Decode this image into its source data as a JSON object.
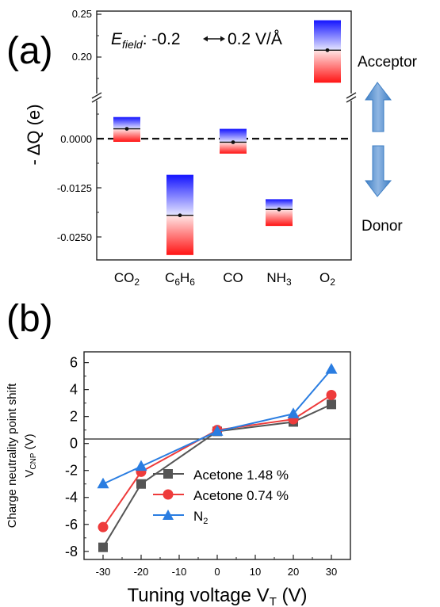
{
  "panel_a": {
    "label": "(a)",
    "field_prefix": "E",
    "field_sub": "field",
    "field_range": ": -0.2",
    "field_unit": "0.2 V/Å",
    "ylabel": "- ΔQ (e)",
    "acceptor_label": "Acceptor",
    "donor_label": "Donor",
    "upper_ticks": [
      "0.25",
      "0.20"
    ],
    "lower_ticks": [
      "0.0000",
      "-0.0125",
      "-0.0250"
    ],
    "molecules": [
      {
        "main": "CO",
        "sub": "2",
        "tail": ""
      },
      {
        "main": "C",
        "sub": "6",
        "tail": "H",
        "sub2": "6"
      },
      {
        "main": "CO",
        "sub": "",
        "tail": ""
      },
      {
        "main": "NH",
        "sub": "3",
        "tail": ""
      },
      {
        "main": "O",
        "sub": "2",
        "tail": ""
      }
    ]
  },
  "panel_b": {
    "label": "(b)",
    "ylabel_line1": "Charge neutrality point shift",
    "ylabel_line2_main": "V",
    "ylabel_line2_sub": "CNP",
    "ylabel_line2_tail": " (V)",
    "xlabel_main": "Tuning voltage V",
    "xlabel_sub": "T",
    "xlabel_tail": "  (V)",
    "x_ticks": [
      "-30",
      "-20",
      "-10",
      "0",
      "10",
      "20",
      "30"
    ],
    "y_ticks": [
      "6",
      "4",
      "2",
      "0",
      "-2",
      "-4",
      "-6",
      "-8"
    ],
    "legend": [
      {
        "label": "Acetone  1.48 %"
      },
      {
        "label": "Acetone  0.74 %"
      },
      {
        "label_main": "N",
        "label_sub": "2"
      }
    ]
  },
  "chart_data": [
    {
      "type": "bar",
      "panel": "(a)",
      "ylabel": "- ΔQ (e)",
      "categories": [
        "CO2",
        "C6H6",
        "CO",
        "NH3",
        "O2"
      ],
      "broken_axis": {
        "upper_range": [
          0.17,
          0.25
        ],
        "lower_range": [
          -0.03,
          0.006
        ]
      },
      "center": [
        0.0025,
        -0.0195,
        -0.0009,
        -0.018,
        0.208
      ],
      "max": [
        0.0055,
        -0.0092,
        0.0025,
        -0.0154,
        0.243
      ],
      "min": [
        -0.0008,
        -0.0296,
        -0.0038,
        -0.0222,
        0.17
      ],
      "colors": {
        "positive_field": "#1a1aff",
        "negative_field": "#ff1a1a"
      },
      "annotations": [
        "Acceptor",
        "Donor"
      ]
    },
    {
      "type": "line",
      "panel": "(b)",
      "xlabel": "Tuning voltage VT  (V)",
      "ylabel": "Charge neutrality point shift VCNP (V)",
      "xlim": [
        -35,
        35
      ],
      "ylim": [
        -8.6,
        6.8
      ],
      "x": [
        -30,
        -20,
        0,
        20,
        30
      ],
      "series": [
        {
          "name": "Acetone  1.48 %",
          "color": "#555555",
          "marker": "square",
          "values": [
            -7.7,
            -3.0,
            0.9,
            1.6,
            2.9
          ]
        },
        {
          "name": "Acetone  0.74 %",
          "color": "#ee3b3b",
          "marker": "circle",
          "values": [
            -6.2,
            -2.1,
            1.0,
            1.8,
            3.6
          ]
        },
        {
          "name": "N2",
          "color": "#2a7de1",
          "marker": "triangle",
          "values": [
            -3.0,
            -1.7,
            0.9,
            2.2,
            5.5
          ]
        }
      ]
    }
  ]
}
